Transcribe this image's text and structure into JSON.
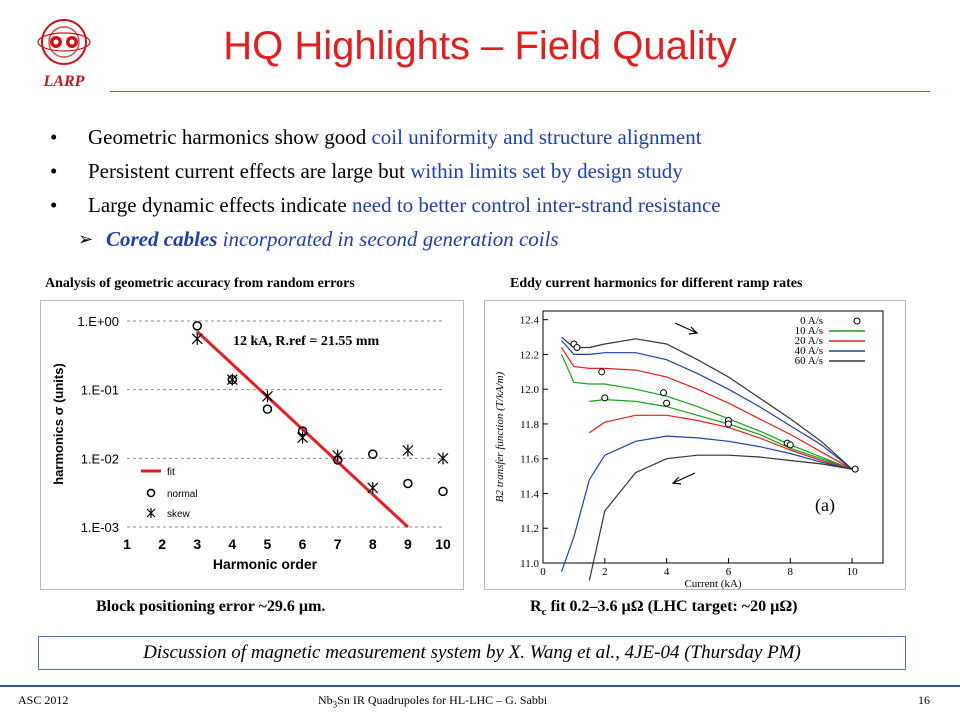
{
  "logo": {
    "text": "LARP"
  },
  "title": "HQ Highlights – Field Quality",
  "bullets": [
    {
      "plain": "Geometric harmonics show good ",
      "highlight": "coil uniformity and structure alignment"
    },
    {
      "plain": "Persistent current effects are large but ",
      "highlight": "within limits set by design study"
    },
    {
      "plain": "Large dynamic effects indicate ",
      "highlight": "need to better control inter-strand resistance"
    }
  ],
  "sub_bullet": {
    "bold": "Cored cables",
    "rest": " incorporated in second generation coils"
  },
  "left_caption": "Analysis of geometric accuracy from random errors",
  "right_caption": "Eddy current harmonics for different ramp rates",
  "left_bottom_caption": "Block positioning error ~29.6 µm.",
  "right_bottom_caption": "R",
  "right_bottom_caption_sub": "c",
  "right_bottom_caption_rest": " fit 0.2–3.6 µΩ (LHC target: ~20 µΩ)",
  "discussion": "Discussion of magnetic measurement system by X. Wang et al., 4JE-04 (Thursday PM)",
  "footer": {
    "left": "ASC 2012",
    "center_pre": "Nb",
    "center_sub1": "3",
    "center_mid": "Sn IR Quadrupoles for HL-LHC – G. Sabbi",
    "page": "16"
  },
  "colors": {
    "title": "#e02020",
    "highlight": "#1f3faa",
    "fit": "#e02020"
  },
  "chart_data": [
    {
      "type": "scatter",
      "annotation": "12 kA, R.ref = 21.55 mm",
      "xlabel": "Harmonic order",
      "ylabel": "harmonics σ (units)",
      "x_ticks": [
        "1",
        "2",
        "3",
        "4",
        "5",
        "6",
        "7",
        "8",
        "9",
        "10"
      ],
      "y_ticks": [
        "1.E+00",
        "1.E-01",
        "1.E-02",
        "1.E-03"
      ],
      "xlim": [
        1,
        10
      ],
      "ylim": [
        0.001,
        1
      ],
      "yscale": "log",
      "grid": true,
      "legend": [
        "fit",
        "normal",
        "skew"
      ],
      "series": [
        {
          "name": "normal",
          "x": [
            3,
            4,
            5,
            6,
            7,
            8,
            9,
            10
          ],
          "values": [
            0.85,
            0.14,
            0.052,
            0.025,
            0.0095,
            0.0115,
            0.0043,
            0.0033
          ]
        },
        {
          "name": "skew",
          "x": [
            3,
            4,
            5,
            6,
            7,
            8,
            9,
            10
          ],
          "values": [
            0.55,
            0.14,
            0.08,
            0.02,
            0.011,
            0.0037,
            0.013,
            0.01
          ]
        },
        {
          "name": "fit",
          "x": [
            3,
            9
          ],
          "values": [
            0.7,
            0.001
          ]
        }
      ]
    },
    {
      "type": "line",
      "xlabel": "Current (kA)",
      "ylabel": "B2 transfer function (T/kA/m)",
      "panel_label": "(a)",
      "x_ticks": [
        "0",
        "2",
        "4",
        "6",
        "8",
        "10"
      ],
      "y_ticks": [
        "11.0",
        "11.2",
        "11.4",
        "11.6",
        "11.8",
        "12.0",
        "12.2",
        "12.4"
      ],
      "xlim": [
        0,
        11
      ],
      "ylim": [
        11.0,
        12.45
      ],
      "legend_position": "top-right",
      "series": [
        {
          "name": "0 A/s",
          "color": "#000000",
          "marker": "circle",
          "x": [
            1.0,
            1.1,
            1.9,
            2.0,
            3.9,
            4.0,
            6.0,
            6.0,
            7.9,
            8.0,
            10.1
          ],
          "values": [
            12.26,
            12.24,
            12.1,
            11.95,
            11.98,
            11.92,
            11.82,
            11.8,
            11.69,
            11.68,
            11.54
          ]
        },
        {
          "name": "10 A/s",
          "color": "#1aa01a",
          "x": [
            0.6,
            1.0,
            1.5,
            2.0,
            3.0,
            4.0,
            5.0,
            6.0,
            7.0,
            8.0,
            9.0,
            10.0
          ],
          "upper": [
            12.2,
            12.04,
            12.03,
            12.03,
            12.0,
            11.96,
            11.9,
            11.83,
            11.76,
            11.68,
            11.61,
            11.54
          ],
          "lower": [
            null,
            null,
            11.93,
            11.94,
            11.93,
            11.9,
            11.85,
            11.8,
            11.74,
            11.66,
            11.6,
            11.54
          ]
        },
        {
          "name": "20 A/s",
          "color": "#e02020",
          "x": [
            0.6,
            1.0,
            1.5,
            2.0,
            3.0,
            4.0,
            5.0,
            6.0,
            7.0,
            8.0,
            9.0,
            10.0
          ],
          "upper": [
            12.24,
            12.13,
            12.12,
            12.12,
            12.11,
            12.07,
            12.0,
            11.92,
            11.83,
            11.74,
            11.64,
            11.54
          ],
          "lower": [
            null,
            null,
            11.75,
            11.81,
            11.85,
            11.85,
            11.82,
            11.78,
            11.72,
            11.65,
            11.59,
            11.54
          ]
        },
        {
          "name": "40 A/s",
          "color": "#1f3faa",
          "x": [
            0.6,
            1.0,
            1.5,
            2.0,
            3.0,
            4.0,
            5.0,
            6.0,
            7.0,
            8.0,
            9.0,
            10.0
          ],
          "upper": [
            12.28,
            12.2,
            12.2,
            12.21,
            12.21,
            12.17,
            12.09,
            12.0,
            11.9,
            11.79,
            11.68,
            11.54
          ],
          "lower": [
            10.95,
            11.15,
            11.48,
            11.62,
            11.7,
            11.73,
            11.72,
            11.7,
            11.67,
            11.63,
            11.58,
            11.54
          ]
        },
        {
          "name": "60 A/s",
          "color": "#333333",
          "x": [
            0.6,
            1.0,
            1.5,
            2.0,
            3.0,
            4.0,
            5.0,
            6.0,
            7.0,
            8.0,
            9.0,
            10.0
          ],
          "upper": [
            12.3,
            12.24,
            12.24,
            12.26,
            12.29,
            12.26,
            12.17,
            12.07,
            11.95,
            11.83,
            11.7,
            11.54
          ],
          "lower": [
            null,
            null,
            10.9,
            11.3,
            11.52,
            11.6,
            11.62,
            11.62,
            11.61,
            11.59,
            11.57,
            11.54
          ]
        }
      ]
    }
  ]
}
